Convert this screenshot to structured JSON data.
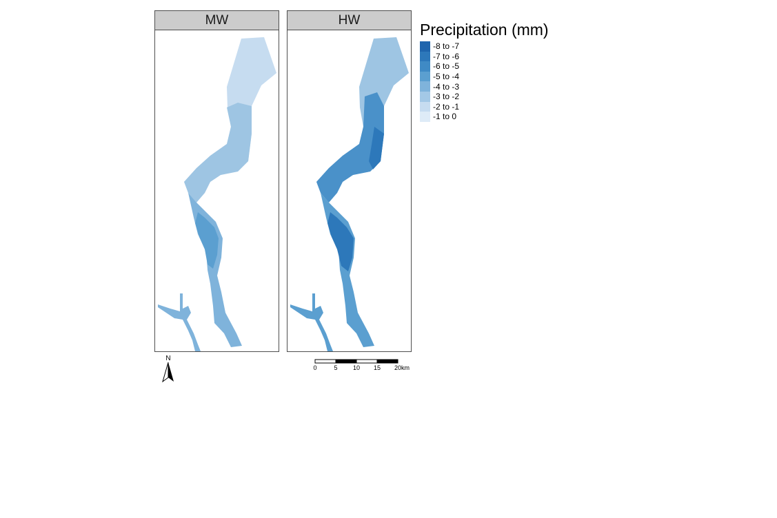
{
  "panels": [
    {
      "label": "MW"
    },
    {
      "label": "HW"
    }
  ],
  "legend": {
    "title": "Precipitation (mm)",
    "items": [
      {
        "label": "-8 to -7",
        "color": "#1f65ad"
      },
      {
        "label": "-7 to -6",
        "color": "#2d78ba"
      },
      {
        "label": "-6 to -5",
        "color": "#3f8ac5"
      },
      {
        "label": "-5 to -4",
        "color": "#5b9fd0"
      },
      {
        "label": "-4 to -3",
        "color": "#7fb3db"
      },
      {
        "label": "-3 to -2",
        "color": "#a3c8e6"
      },
      {
        "label": "-2 to -1",
        "color": "#c6dcf0"
      },
      {
        "label": "-1 to 0",
        "color": "#deebf7"
      }
    ]
  },
  "north_arrow": {
    "label": "N"
  },
  "scalebar": {
    "ticks": [
      "0",
      "5",
      "10",
      "15",
      "20km"
    ]
  }
}
